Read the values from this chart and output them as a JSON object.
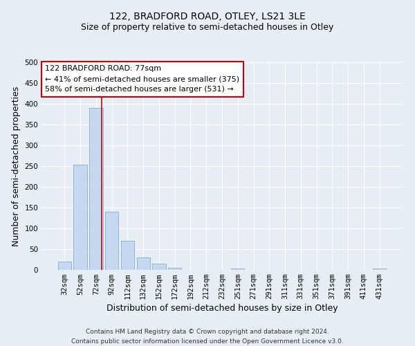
{
  "title": "122, BRADFORD ROAD, OTLEY, LS21 3LE",
  "subtitle": "Size of property relative to semi-detached houses in Otley",
  "xlabel": "Distribution of semi-detached houses by size in Otley",
  "ylabel": "Number of semi-detached properties",
  "bar_labels": [
    "32sqm",
    "52sqm",
    "72sqm",
    "92sqm",
    "112sqm",
    "132sqm",
    "152sqm",
    "172sqm",
    "192sqm",
    "212sqm",
    "232sqm",
    "251sqm",
    "271sqm",
    "291sqm",
    "311sqm",
    "331sqm",
    "351sqm",
    "371sqm",
    "391sqm",
    "411sqm",
    "431sqm"
  ],
  "bar_values": [
    20,
    253,
    390,
    140,
    70,
    30,
    15,
    5,
    0,
    0,
    0,
    4,
    0,
    0,
    0,
    0,
    0,
    0,
    0,
    0,
    3
  ],
  "bar_color": "#c6d9f0",
  "bar_edge_color": "#7bafd4",
  "ylim": [
    0,
    500
  ],
  "yticks": [
    0,
    50,
    100,
    150,
    200,
    250,
    300,
    350,
    400,
    450,
    500
  ],
  "property_label": "122 BRADFORD ROAD: 77sqm",
  "pct_smaller": 41,
  "pct_smaller_count": 375,
  "pct_larger": 58,
  "pct_larger_count": 531,
  "vline_x_index": 2.35,
  "annotation_box_color": "#ffffff",
  "annotation_box_edge": "#cc0000",
  "footer_line1": "Contains HM Land Registry data © Crown copyright and database right 2024.",
  "footer_line2": "Contains public sector information licensed under the Open Government Licence v3.0.",
  "background_color": "#e8eef5",
  "plot_background": "#e8eef5",
  "grid_color": "#ffffff",
  "title_fontsize": 10,
  "subtitle_fontsize": 9,
  "axis_label_fontsize": 9,
  "tick_fontsize": 7.5,
  "footer_fontsize": 6.5
}
